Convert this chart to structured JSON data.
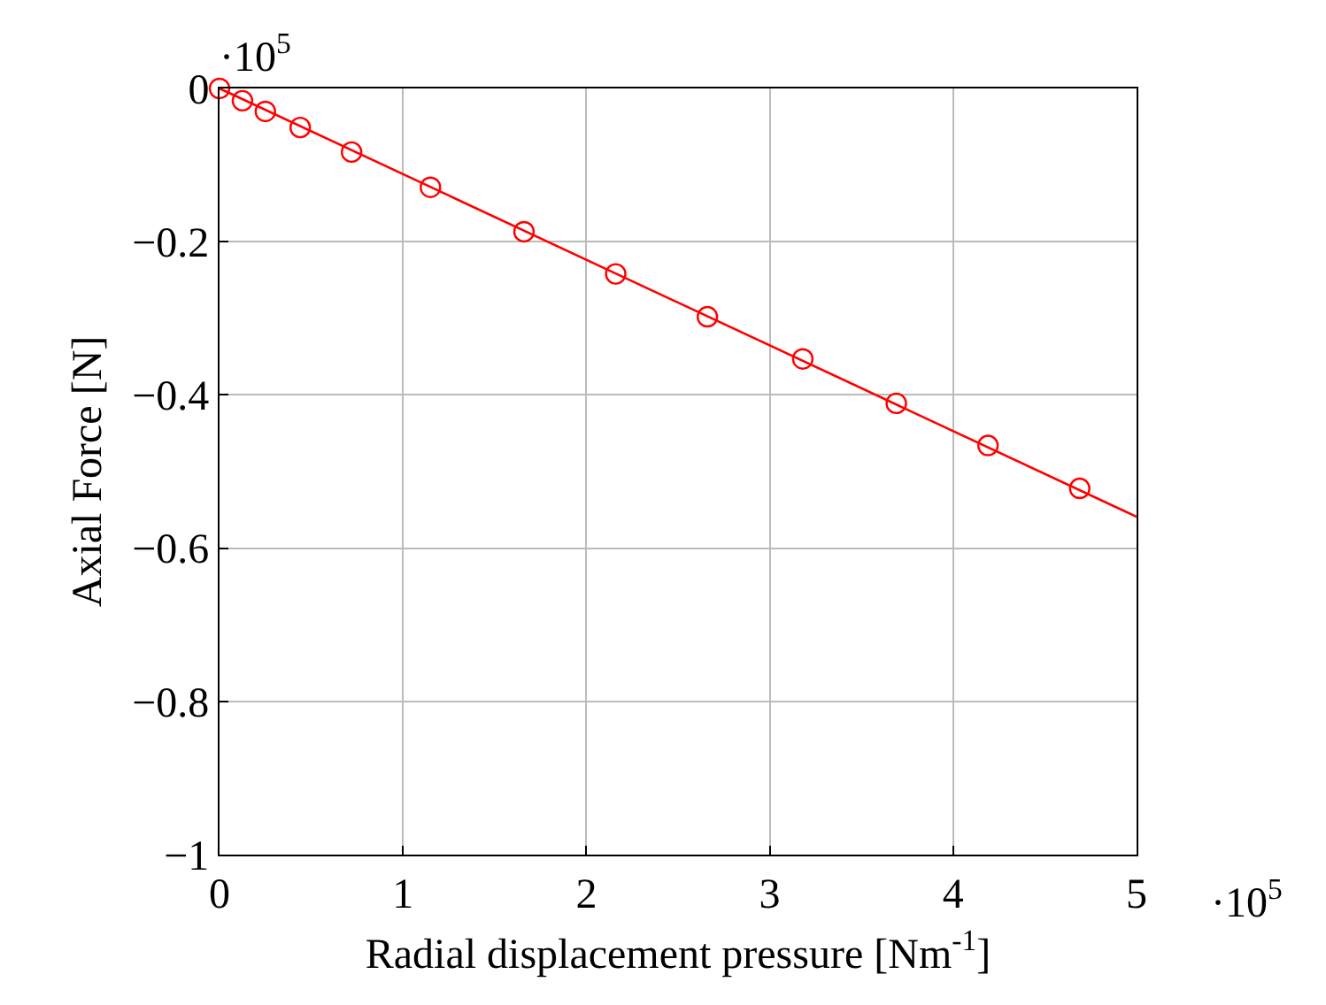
{
  "chart_data": {
    "type": "scatter",
    "xlabel": "Radial displacement pressure [Nm$^{-1}$]",
    "ylabel": "Axial Force [N]",
    "series": [
      {
        "color": "#ff0000",
        "marker": "circle",
        "x": [
          0,
          0.125,
          0.25,
          0.44,
          0.72,
          1.15,
          1.66,
          2.16,
          2.66,
          3.18,
          3.69,
          4.19,
          4.69
        ],
        "values": [
          0,
          -0.016,
          -0.03,
          -0.051,
          -0.083,
          -0.129,
          -0.187,
          -0.242,
          -0.298,
          -0.353,
          -0.411,
          -0.466,
          -0.522
        ]
      },
      {
        "type": "line",
        "color": "#ff0000",
        "marker": "none",
        "x": [
          0,
          5
        ],
        "values": [
          0,
          -0.559
        ]
      }
    ],
    "xlim": [
      0,
      5
    ],
    "xticks": [
      0,
      1,
      2,
      3,
      4,
      5
    ],
    "ylim": [
      -1,
      0
    ],
    "yticks": [
      {
        "value": -1,
        "label": "−1"
      },
      {
        "value": -0.8,
        "label": "−0.8"
      },
      {
        "value": -0.6,
        "label": "−0.6"
      },
      {
        "value": -0.4,
        "label": "−0.4"
      },
      {
        "value": -0.2,
        "label": "−0.2"
      },
      0
    ],
    "grid": true,
    "annotations": [
      "·10$^{5}$",
      "·10$^{5}$"
    ]
  }
}
